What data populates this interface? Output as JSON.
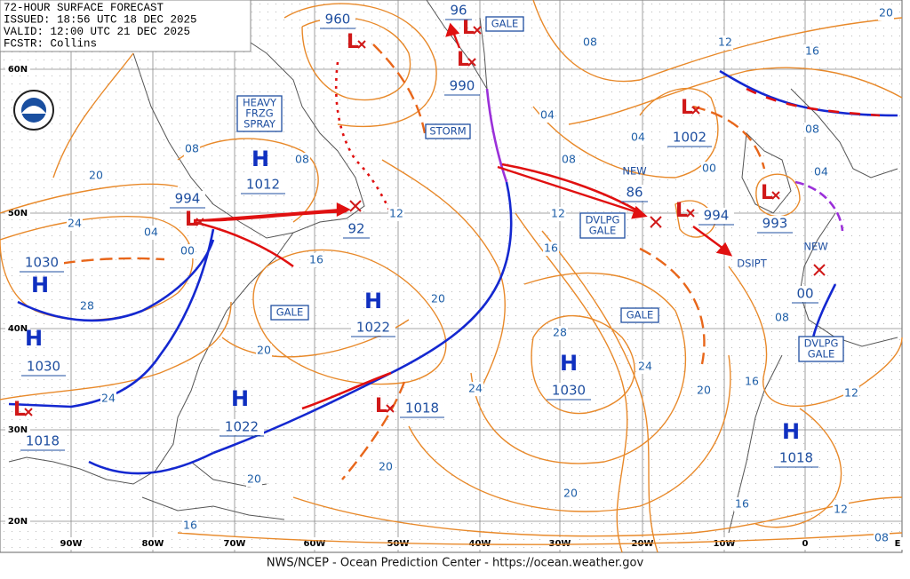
{
  "header": {
    "lines": [
      "72-HOUR SURFACE FORECAST",
      "ISSUED: 18:56 UTC 18 DEC 2025",
      "VALID:  12:00 UTC 21 DEC 2025",
      "FCSTR:  Collins"
    ]
  },
  "lat_labels": [
    "60N",
    "50N",
    "40N",
    "30N",
    "20N"
  ],
  "lon_labels": [
    "90W",
    "80W",
    "70W",
    "60W",
    "50W",
    "40W",
    "30W",
    "20W",
    "10W",
    "0",
    "E"
  ],
  "pressure_centers": [
    {
      "symbol": "L",
      "value": "960"
    },
    {
      "symbol": "L",
      "value": "96"
    },
    {
      "symbol": "L",
      "value": "990"
    },
    {
      "symbol": "H",
      "value": "1012"
    },
    {
      "symbol": "L",
      "value": "994"
    },
    {
      "symbol": "X",
      "value": "92"
    },
    {
      "symbol": "H",
      "value": "1022"
    },
    {
      "symbol": "L",
      "value": "1002"
    },
    {
      "symbol": "X",
      "value": "86",
      "note": "NEW"
    },
    {
      "symbol": "L",
      "value": "994"
    },
    {
      "symbol": "L",
      "value": "993"
    },
    {
      "symbol": "X",
      "value": "00",
      "note": "NEW"
    },
    {
      "symbol": "H",
      "value": "1030"
    },
    {
      "symbol": "H",
      "value": "1030"
    },
    {
      "symbol": "L",
      "value": "1018"
    },
    {
      "symbol": "H",
      "value": "1022"
    },
    {
      "symbol": "L",
      "value": "1018"
    },
    {
      "symbol": "H",
      "value": "1030"
    },
    {
      "symbol": "H",
      "value": "1018"
    }
  ],
  "warnings": [
    {
      "lines": [
        "HEAVY",
        "FRZG",
        "SPRAY"
      ]
    },
    {
      "lines": [
        "STORM"
      ]
    },
    {
      "lines": [
        "GALE"
      ]
    },
    {
      "lines": [
        "GALE"
      ]
    },
    {
      "lines": [
        "DVLPG",
        "GALE"
      ]
    },
    {
      "lines": [
        "GALE"
      ]
    },
    {
      "lines": [
        "DVLPG",
        "GALE"
      ]
    }
  ],
  "annotations": [
    "DSIPT"
  ],
  "isobar_labels": [
    "08",
    "12",
    "16",
    "20",
    "04",
    "08",
    "04",
    "00",
    "08",
    "04",
    "12",
    "16",
    "12",
    "16",
    "20",
    "20",
    "24",
    "28",
    "24",
    "20",
    "08",
    "08",
    "04",
    "00",
    "28",
    "24",
    "24",
    "20",
    "16",
    "12",
    "08",
    "20",
    "20",
    "20",
    "16",
    "12",
    "16",
    "08"
  ],
  "footer": "NWS/NCEP - Ocean Prediction Center - https://ocean.weather.gov"
}
